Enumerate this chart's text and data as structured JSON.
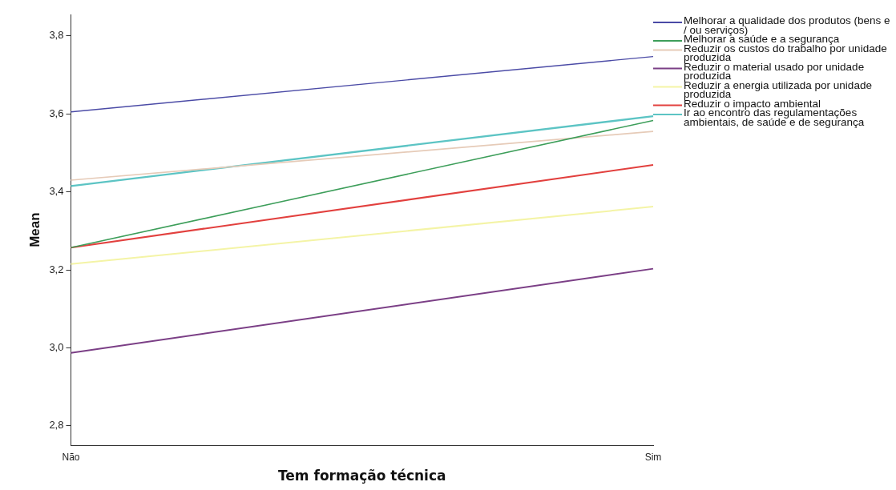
{
  "chart_data": {
    "type": "line",
    "xlabel": "Tem formação técnica",
    "ylabel": "Mean",
    "categories": [
      "Não",
      "Sim"
    ],
    "series": [
      {
        "name": "Melhorar a qualidade dos produtos (bens e / ou serviços)",
        "color": "#4b4ba6",
        "values": [
          3.605,
          3.747
        ]
      },
      {
        "name": "Melhorar a saúde e a segurança",
        "color": "#3d9e5a",
        "values": [
          3.257,
          3.583
        ]
      },
      {
        "name": "Reduzir os custos do trabalho por unidade produzida",
        "color": "#e6cbb8",
        "values": [
          3.43,
          3.555
        ]
      },
      {
        "name": "Reduzir o material usado por unidade produzida",
        "color": "#7b3f86",
        "values": [
          2.987,
          3.203
        ]
      },
      {
        "name": "Reduzir a energia utilizada por unidade produzida",
        "color": "#f4f4a6",
        "values": [
          3.215,
          3.362
        ]
      },
      {
        "name": "Reduzir o impacto ambiental",
        "color": "#e2403e",
        "values": [
          3.257,
          3.469
        ]
      },
      {
        "name": "Ir ao encontro das regulamentações ambientais, de saúde e de segurança",
        "color": "#5cc4c4",
        "values": [
          3.415,
          3.594
        ]
      }
    ],
    "ylim": [
      2.75,
      3.855
    ],
    "yticks": [
      {
        "value": 2.8,
        "label": "2,8"
      },
      {
        "value": 3.0,
        "label": "3,0"
      },
      {
        "value": 3.2,
        "label": "3,2"
      },
      {
        "value": 3.4,
        "label": "3,4"
      },
      {
        "value": 3.6,
        "label": "3,6"
      },
      {
        "value": 3.8,
        "label": "3,8"
      }
    ],
    "grid": false,
    "legend": "right",
    "marker": "none",
    "line_style": "solid"
  }
}
